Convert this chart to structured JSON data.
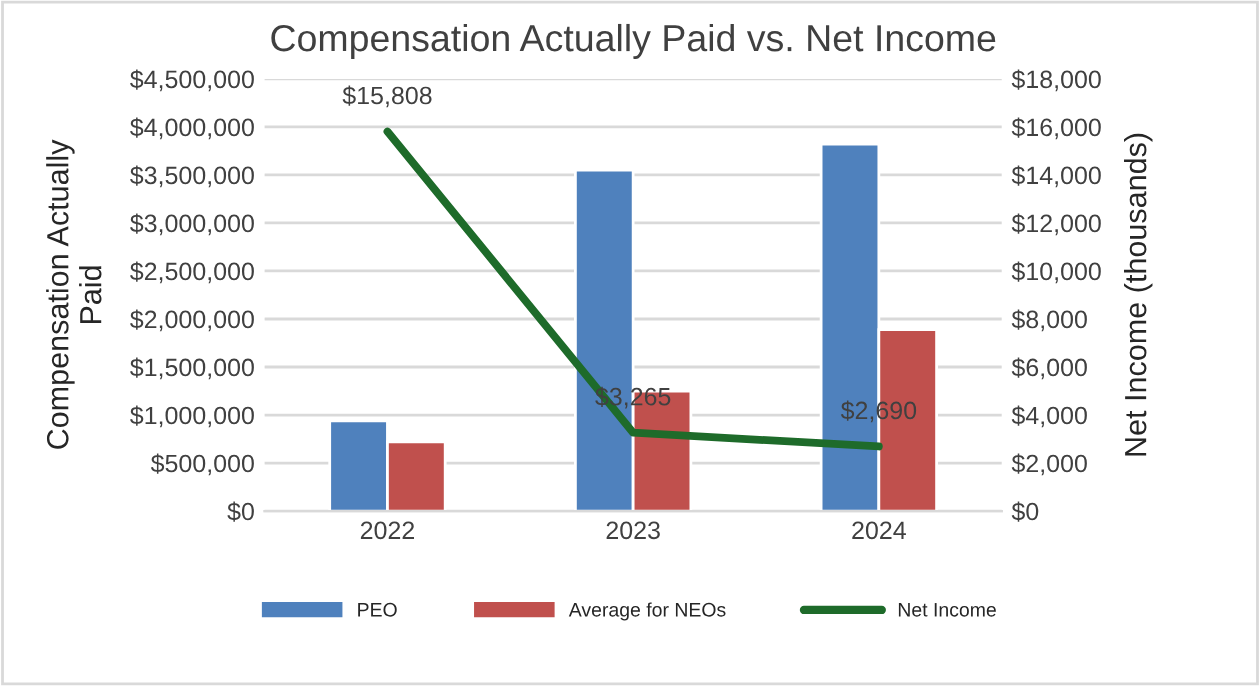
{
  "chart_data": {
    "type": "bar",
    "title": "Compensation Actually Paid vs. Net Income",
    "ylabel": "Compensation Actually\nPaid",
    "y2label": "Net Income (thousands)",
    "categories": [
      "2022",
      "2023",
      "2024"
    ],
    "series": [
      {
        "name": "PEO",
        "color": "#4f81bd",
        "values": [
          940000,
          3550000,
          3820000
        ]
      },
      {
        "name": "Average for NEOs",
        "color": "#c0504d",
        "values": [
          720000,
          1250000,
          1890000
        ]
      },
      {
        "name": "Net Income",
        "type": "line",
        "axis": "y2",
        "color": "#1e6b2a",
        "values": [
          15808,
          3265,
          2690
        ],
        "value_labels": [
          "$15,808",
          "$3,265",
          "$2,690"
        ]
      }
    ],
    "ylim": [
      0,
      4500000
    ],
    "yticks": [
      {
        "value": 0,
        "label": "$0"
      },
      {
        "value": 500000,
        "label": "$500,000"
      },
      {
        "value": 1000000,
        "label": "$1,000,000"
      },
      {
        "value": 1500000,
        "label": "$1,500,000"
      },
      {
        "value": 2000000,
        "label": "$2,000,000"
      },
      {
        "value": 2500000,
        "label": "$2,500,000"
      },
      {
        "value": 3000000,
        "label": "$3,000,000"
      },
      {
        "value": 3500000,
        "label": "$3,500,000"
      },
      {
        "value": 4000000,
        "label": "$4,000,000"
      },
      {
        "value": 4500000,
        "label": "$4,500,000"
      }
    ],
    "y2lim": [
      0,
      18000
    ],
    "y2ticks": [
      {
        "value": 0,
        "label": "$0"
      },
      {
        "value": 2000,
        "label": "$2,000"
      },
      {
        "value": 4000,
        "label": "$4,000"
      },
      {
        "value": 6000,
        "label": "$6,000"
      },
      {
        "value": 8000,
        "label": "$8,000"
      },
      {
        "value": 10000,
        "label": "$10,000"
      },
      {
        "value": 12000,
        "label": "$12,000"
      },
      {
        "value": 14000,
        "label": "$14,000"
      },
      {
        "value": 16000,
        "label": "$16,000"
      },
      {
        "value": 18000,
        "label": "$18,000"
      }
    ],
    "grid": "y",
    "legend": "bottom"
  }
}
